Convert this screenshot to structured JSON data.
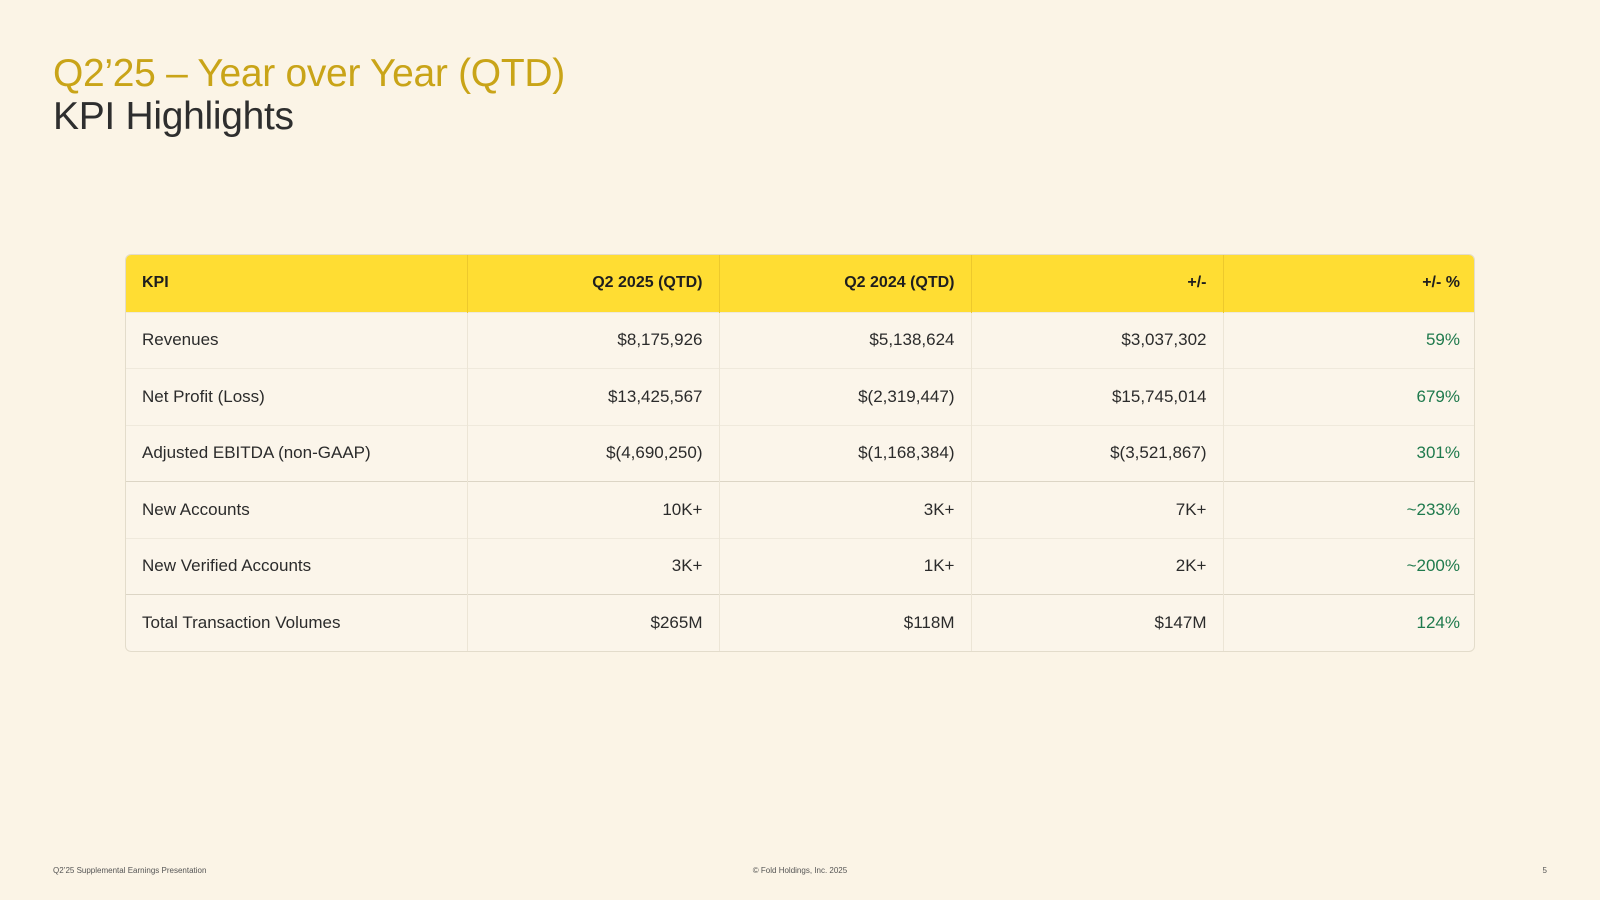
{
  "title": {
    "line1": "Q2’25 – Year over Year (QTD)",
    "line2": "KPI Highlights"
  },
  "table": {
    "headers": [
      "KPI",
      "Q2 2025 (QTD)",
      "Q2 2024 (QTD)",
      "+/-",
      "+/- %"
    ],
    "rows": [
      {
        "kpi": "Revenues",
        "q2_2025": "$8,175,926",
        "q2_2024": "$5,138,624",
        "diff": "$3,037,302",
        "pct": "59%"
      },
      {
        "kpi": "Net Profit (Loss)",
        "q2_2025": "$13,425,567",
        "q2_2024": "$(2,319,447)",
        "diff": "$15,745,014",
        "pct": "679%"
      },
      {
        "kpi": "Adjusted EBITDA (non-GAAP)",
        "q2_2025": "$(4,690,250)",
        "q2_2024": "$(1,168,384)",
        "diff": "$(3,521,867)",
        "pct": "301%"
      },
      {
        "kpi": "New Accounts",
        "q2_2025": "10K+",
        "q2_2024": "3K+",
        "diff": "7K+",
        "pct": "~233%"
      },
      {
        "kpi": "New Verified Accounts",
        "q2_2025": "3K+",
        "q2_2024": "1K+",
        "diff": "2K+",
        "pct": "~200%"
      },
      {
        "kpi": "Total Transaction Volumes",
        "q2_2025": "$265M",
        "q2_2024": "$118M",
        "diff": "$147M",
        "pct": "124%"
      }
    ]
  },
  "footer": {
    "left": "Q2’25 Supplemental Earnings Presentation",
    "center": "© Fold Holdings, Inc. 2025",
    "page": "5"
  },
  "colors": {
    "background": "#FBF4E6",
    "accent_title": "#C9A418",
    "header_fill": "#FFDD33",
    "positive_pct": "#1F7A4D"
  }
}
